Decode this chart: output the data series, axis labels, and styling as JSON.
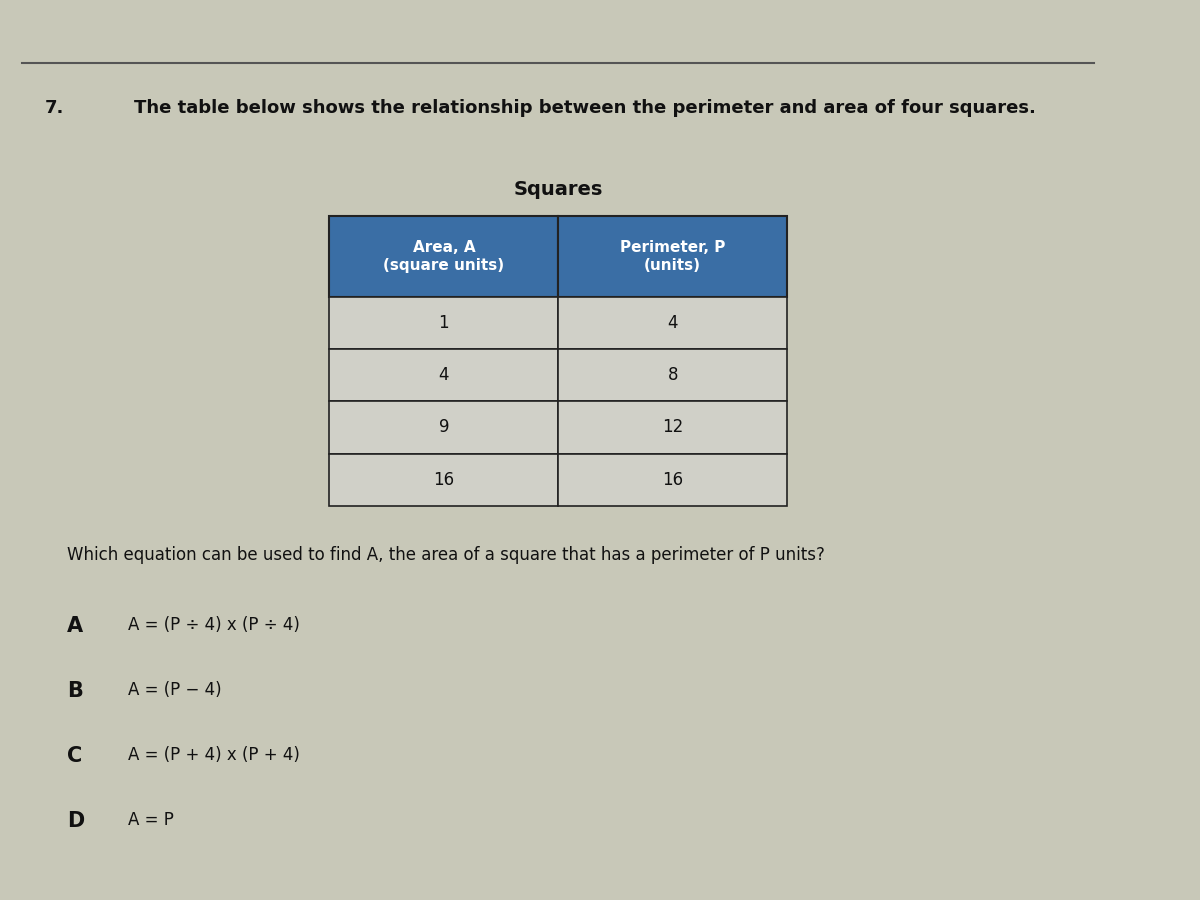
{
  "question_number": "7.",
  "question_text": "The table below shows the relationship between the perimeter and area of four squares.",
  "table_title": "Squares",
  "col_headers": [
    "Area, A\n(square units)",
    "Perimeter, P\n(units)"
  ],
  "table_data": [
    [
      "1",
      "4"
    ],
    [
      "4",
      "8"
    ],
    [
      "9",
      "12"
    ],
    [
      "16",
      "16"
    ]
  ],
  "follow_up": "Which equation can be used to find A, the area of a square that has a perimeter of P units?",
  "choices": [
    [
      "A",
      "A = (P ÷ 4) x (P ÷ 4)"
    ],
    [
      "B",
      "A = (P − 4)"
    ],
    [
      "C",
      "A = (P + 4) x (P + 4)"
    ],
    [
      "D",
      "A = P"
    ]
  ],
  "bg_color": "#c8c8b8",
  "table_header_bg": "#3a6ea5",
  "table_header_fg": "#ffffff",
  "table_cell_bg": "#d0d0c8",
  "table_border_color": "#222222",
  "text_color": "#111111",
  "top_line_color": "#555555",
  "title_fontsize": 13,
  "body_fontsize": 12,
  "choice_letter_fontsize": 15,
  "choice_text_fontsize": 12
}
